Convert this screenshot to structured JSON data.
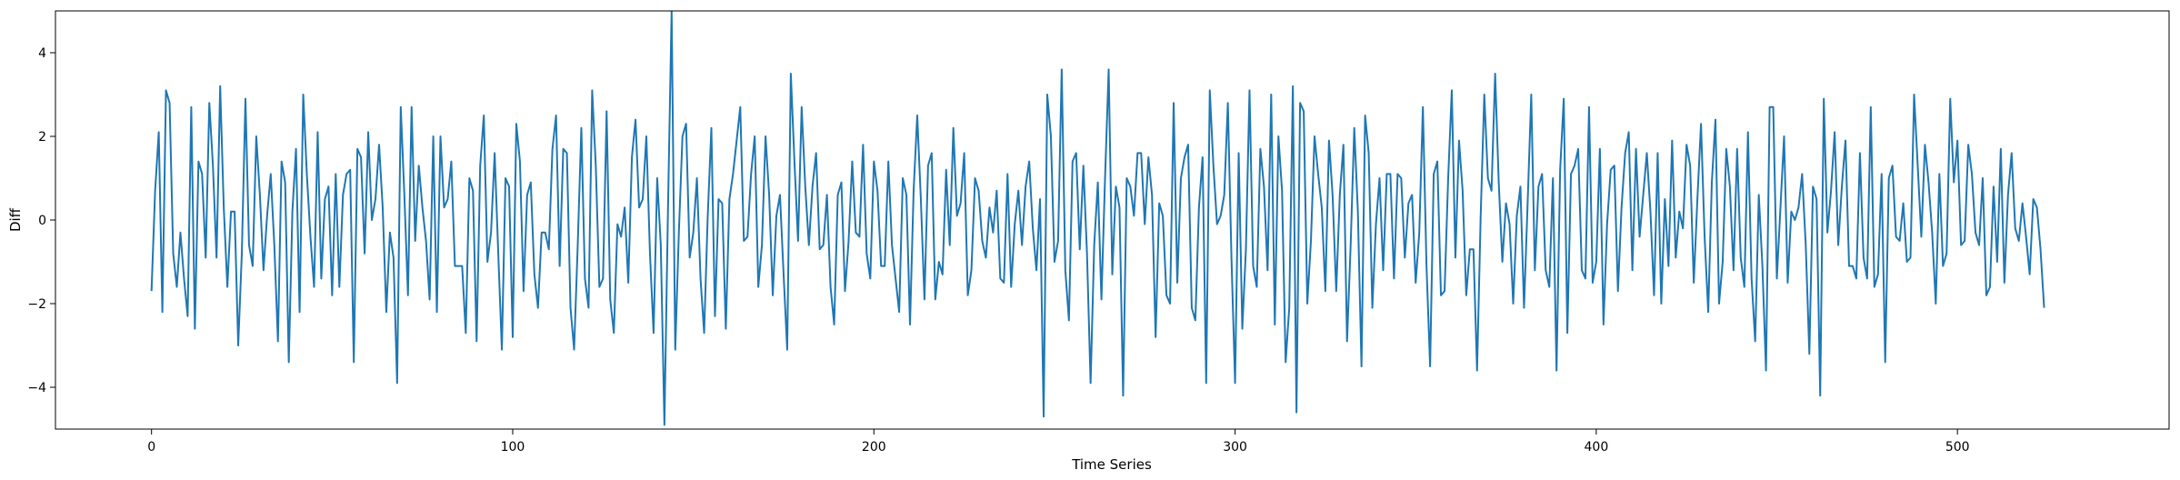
{
  "chart_data": {
    "type": "line",
    "title": "",
    "xlabel": "Time Series",
    "ylabel": "Diff",
    "xlim": [
      -26.6,
      558.6
    ],
    "ylim": [
      -5.0,
      5.0
    ],
    "xticks": [
      0,
      100,
      200,
      300,
      400,
      500
    ],
    "yticks": [
      -4,
      -2,
      0,
      2,
      4
    ],
    "xtick_labels": [
      "0",
      "100",
      "200",
      "300",
      "400",
      "500"
    ],
    "ytick_labels": [
      "−4",
      "−2",
      "0",
      "2",
      "4"
    ],
    "grid": false,
    "legend": "none",
    "line_color": "#1f77b4",
    "series": [
      {
        "x_start": 0,
        "x_step": 1,
        "values": [
          -1.7,
          0.7,
          2.1,
          -2.2,
          3.1,
          2.8,
          -0.8,
          -1.6,
          -0.3,
          -1.4,
          -2.3,
          2.7,
          -2.6,
          1.4,
          1.1,
          -0.9,
          2.8,
          1.3,
          -0.9,
          3.2,
          0.3,
          -1.6,
          0.2,
          0.2,
          -3.0,
          -0.8,
          2.9,
          -0.6,
          -1.1,
          2.0,
          0.6,
          -1.2,
          0.1,
          1.1,
          -0.6,
          -2.9,
          1.4,
          0.9,
          -3.4,
          0.2,
          1.7,
          -2.2,
          3.0,
          1.1,
          -0.4,
          -1.6,
          2.1,
          -1.4,
          0.5,
          0.8,
          -1.8,
          1.1,
          -1.6,
          0.6,
          1.1,
          1.2,
          -3.4,
          1.7,
          1.5,
          -0.8,
          2.1,
          0.0,
          0.5,
          1.8,
          0.3,
          -2.2,
          -0.3,
          -0.9,
          -3.9,
          2.7,
          0.6,
          -1.8,
          2.7,
          -0.5,
          1.3,
          0.3,
          -0.5,
          -1.9,
          2.0,
          -2.2,
          2.0,
          0.3,
          0.5,
          1.4,
          -1.1,
          -1.1,
          -1.1,
          -2.7,
          1.0,
          0.7,
          -2.9,
          1.3,
          2.5,
          -1.0,
          -0.3,
          1.6,
          -0.8,
          -3.1,
          1.0,
          0.8,
          -2.8,
          2.3,
          1.4,
          -1.7,
          0.6,
          0.9,
          -1.3,
          -2.1,
          -0.3,
          -0.3,
          -0.7,
          1.7,
          2.5,
          -1.1,
          1.7,
          1.6,
          -2.1,
          -3.1,
          -0.6,
          2.2,
          -1.4,
          -2.1,
          3.1,
          1.3,
          -1.6,
          -1.4,
          2.6,
          -1.9,
          -2.7,
          -0.1,
          -0.4,
          0.3,
          -1.5,
          1.5,
          2.4,
          0.3,
          0.5,
          2.0,
          -0.8,
          -2.7,
          1.0,
          -0.6,
          -4.9,
          0.3,
          5.0,
          -3.1,
          -0.3,
          2.0,
          2.3,
          -0.9,
          -0.3,
          1.0,
          -1.4,
          -2.7,
          0.1,
          2.2,
          -2.3,
          0.5,
          0.4,
          -2.6,
          0.5,
          1.1,
          1.9,
          2.7,
          -0.5,
          -0.4,
          1.1,
          2.0,
          -1.6,
          -0.6,
          2.0,
          0.6,
          -1.8,
          0.1,
          0.6,
          -1.3,
          -3.1,
          3.5,
          1.4,
          -0.5,
          2.7,
          0.8,
          -0.6,
          0.8,
          1.6,
          -0.7,
          -0.6,
          0.6,
          -1.6,
          -2.5,
          0.6,
          0.9,
          -1.7,
          -0.5,
          1.4,
          -0.3,
          -0.4,
          1.8,
          -0.8,
          -1.4,
          1.4,
          0.7,
          -1.1,
          -1.1,
          1.4,
          -0.6,
          -1.4,
          -2.2,
          1.0,
          0.6,
          -2.5,
          0.7,
          2.5,
          0.5,
          -1.9,
          1.3,
          1.6,
          -1.9,
          -1.0,
          -1.3,
          1.2,
          -0.6,
          2.2,
          0.1,
          0.4,
          1.6,
          -1.8,
          -1.2,
          1.0,
          0.7,
          -0.5,
          -0.9,
          0.3,
          -0.3,
          0.7,
          -1.4,
          -1.5,
          1.1,
          -1.6,
          -0.1,
          0.7,
          -0.6,
          0.8,
          1.4,
          -0.2,
          -1.2,
          0.5,
          -4.7,
          3.0,
          2.0,
          -1.0,
          -0.5,
          3.6,
          -1.2,
          -2.4,
          1.4,
          1.6,
          -0.7,
          1.3,
          -0.8,
          -3.9,
          -0.6,
          0.9,
          -1.9,
          1.0,
          3.6,
          -1.3,
          0.8,
          0.3,
          -4.2,
          1.0,
          0.8,
          0.1,
          1.6,
          1.6,
          -0.1,
          1.5,
          0.6,
          -2.8,
          0.4,
          0.1,
          -1.8,
          -2.0,
          2.8,
          -1.5,
          1.0,
          1.5,
          1.8,
          -2.1,
          -2.4,
          0.3,
          1.5,
          -3.9,
          3.1,
          1.3,
          -0.1,
          0.1,
          0.6,
          2.8,
          -0.9,
          -3.9,
          1.6,
          -2.6,
          -0.7,
          3.1,
          -1.1,
          -1.6,
          1.7,
          0.8,
          -1.2,
          3.0,
          -2.5,
          2.0,
          0.7,
          -3.4,
          -2.1,
          3.2,
          -4.6,
          2.8,
          2.6,
          -2.0,
          -0.5,
          2.0,
          1.1,
          0.3,
          -1.7,
          1.9,
          0.6,
          -1.7,
          0.6,
          1.8,
          -2.9,
          -0.6,
          2.2,
          0.2,
          -3.5,
          2.5,
          1.6,
          -2.1,
          -0.1,
          1.0,
          -1.2,
          1.1,
          1.1,
          -1.4,
          1.1,
          1.0,
          -0.9,
          0.4,
          0.6,
          -1.5,
          -0.3,
          2.7,
          -1.1,
          -3.5,
          1.1,
          1.4,
          -1.8,
          -1.7,
          1.0,
          3.1,
          -0.9,
          1.9,
          0.7,
          -1.8,
          -0.7,
          -0.7,
          -3.6,
          0.1,
          3.0,
          1.0,
          0.7,
          3.5,
          0.9,
          -1.0,
          0.4,
          -0.1,
          -2.0,
          0.1,
          0.8,
          -2.1,
          0.4,
          3.0,
          -1.2,
          0.8,
          1.1,
          -1.2,
          -1.6,
          1.0,
          -3.6,
          1.2,
          2.9,
          -2.7,
          1.1,
          1.3,
          1.7,
          -1.2,
          -1.4,
          2.7,
          -1.5,
          -1.0,
          1.7,
          -2.5,
          -0.1,
          1.2,
          1.3,
          -1.7,
          0.3,
          1.6,
          2.1,
          -1.2,
          1.7,
          -0.4,
          0.6,
          1.6,
          0.2,
          -1.8,
          1.6,
          -2.0,
          0.5,
          -1.1,
          1.9,
          -0.9,
          0.2,
          -0.2,
          1.8,
          1.3,
          -1.5,
          0.5,
          2.3,
          -0.4,
          -2.2,
          0.9,
          2.4,
          -2.0,
          -1.0,
          1.7,
          0.8,
          -1.2,
          1.7,
          -0.9,
          -1.6,
          2.1,
          -1.4,
          -2.9,
          0.6,
          -1.1,
          -3.6,
          2.7,
          2.7,
          -1.4,
          0.3,
          2.0,
          -1.5,
          0.2,
          0.0,
          0.3,
          1.1,
          -0.6,
          -3.2,
          0.8,
          0.5,
          -4.2,
          2.9,
          -0.3,
          0.7,
          2.1,
          -0.6,
          0.8,
          1.9,
          -1.1,
          -1.1,
          -1.4,
          1.6,
          -0.9,
          -1.4,
          2.7,
          -1.6,
          -1.3,
          1.1,
          -3.4,
          1.0,
          1.3,
          -0.4,
          -0.5,
          0.4,
          -1.0,
          -0.9,
          3.0,
          1.3,
          -0.4,
          1.8,
          0.9,
          -0.3,
          -2.0,
          1.1,
          -1.1,
          -0.8,
          2.9,
          0.9,
          1.9,
          -0.6,
          -0.5,
          1.8,
          1.1,
          -0.3,
          -0.6,
          1.0,
          -1.8,
          -1.6,
          0.8,
          -1.0,
          1.7,
          -1.5,
          0.6,
          1.6,
          -0.2,
          -0.5,
          0.4,
          -0.4,
          -1.3,
          0.5,
          0.3,
          -0.7,
          -2.1
        ]
      }
    ]
  }
}
